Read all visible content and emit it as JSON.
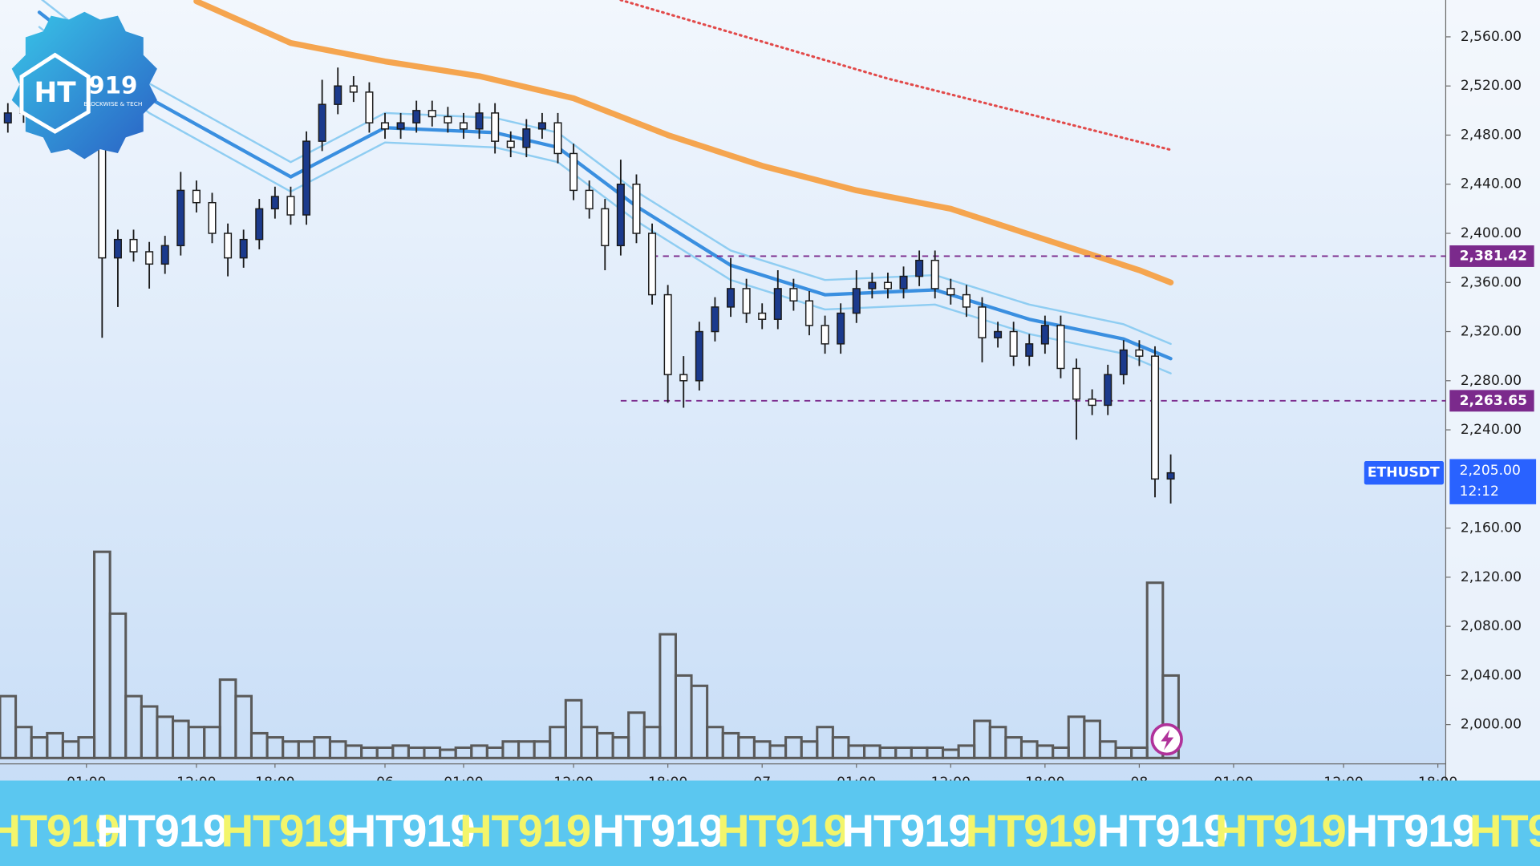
{
  "chart_data": {
    "type": "candlestick",
    "symbol": "ETHUSDT",
    "price": 2205,
    "price_label": "2,205.00",
    "countdown": "12:12",
    "up_color": "#1b3a8c",
    "down_color": "#ffffff",
    "xlim": [
      -0.5,
      91.5
    ],
    "ylim": [
      1968,
      2590
    ],
    "yticks": [
      {
        "value": 2000,
        "label": "2,000.00"
      },
      {
        "value": 2040,
        "label": "2,040.00"
      },
      {
        "value": 2080,
        "label": "2,080.00"
      },
      {
        "value": 2120,
        "label": "2,120.00"
      },
      {
        "value": 2160,
        "label": "2,160.00"
      },
      {
        "value": 2240,
        "label": "2,240.00"
      },
      {
        "value": 2280,
        "label": "2,280.00"
      },
      {
        "value": 2320,
        "label": "2,320.00"
      },
      {
        "value": 2360,
        "label": "2,360.00"
      },
      {
        "value": 2400,
        "label": "2,400.00"
      },
      {
        "value": 2440,
        "label": "2,440.00"
      },
      {
        "value": 2480,
        "label": "2,480.00"
      },
      {
        "value": 2520,
        "label": "2,520.00"
      },
      {
        "value": 2560,
        "label": "2,560.00"
      }
    ],
    "xticks": [
      {
        "value": 5,
        "label": "01:00"
      },
      {
        "value": 12,
        "label": "12:00"
      },
      {
        "value": 17,
        "label": "18:00"
      },
      {
        "value": 24,
        "label": "06"
      },
      {
        "value": 29,
        "label": "01:00"
      },
      {
        "value": 36,
        "label": "12:00"
      },
      {
        "value": 42,
        "label": "18:00"
      },
      {
        "value": 48,
        "label": "07"
      },
      {
        "value": 54,
        "label": "01:00"
      },
      {
        "value": 60,
        "label": "12:00"
      },
      {
        "value": 66,
        "label": "18:00"
      },
      {
        "value": 72,
        "label": "08"
      },
      {
        "value": 78,
        "label": "01:00"
      },
      {
        "value": 85,
        "label": "12:00"
      },
      {
        "value": 91,
        "label": "18:00"
      }
    ],
    "open": [
      2490,
      2498,
      2505,
      2490,
      2500,
      2495,
      2505,
      2380,
      2395,
      2385,
      2375,
      2390,
      2435,
      2425,
      2400,
      2380,
      2395,
      2420,
      2430,
      2415,
      2475,
      2505,
      2520,
      2515,
      2490,
      2485,
      2490,
      2500,
      2495,
      2490,
      2485,
      2498,
      2475,
      2470,
      2485,
      2490,
      2465,
      2435,
      2420,
      2390,
      2440,
      2400,
      2350,
      2285,
      2280,
      2320,
      2340,
      2355,
      2335,
      2330,
      2355,
      2345,
      2325,
      2310,
      2335,
      2355,
      2360,
      2355,
      2365,
      2378,
      2355,
      2350,
      2340,
      2315,
      2320,
      2300,
      2310,
      2325,
      2290,
      2265,
      2260,
      2285,
      2305,
      2300,
      2200
    ],
    "high": [
      2506,
      2513,
      2513,
      2508,
      2508,
      2513,
      2513,
      2403,
      2403,
      2393,
      2398,
      2450,
      2443,
      2433,
      2408,
      2403,
      2428,
      2438,
      2438,
      2483,
      2525,
      2535,
      2528,
      2523,
      2498,
      2498,
      2508,
      2508,
      2503,
      2498,
      2506,
      2506,
      2483,
      2493,
      2498,
      2498,
      2473,
      2443,
      2428,
      2460,
      2448,
      2408,
      2358,
      2300,
      2328,
      2348,
      2380,
      2363,
      2343,
      2370,
      2363,
      2353,
      2333,
      2343,
      2370,
      2368,
      2368,
      2373,
      2386,
      2386,
      2363,
      2358,
      2348,
      2328,
      2328,
      2318,
      2333,
      2333,
      2298,
      2273,
      2293,
      2313,
      2313,
      2308,
      2220
    ],
    "low": [
      2482,
      2490,
      2482,
      2482,
      2487,
      2487,
      2315,
      2340,
      2377,
      2355,
      2367,
      2382,
      2417,
      2392,
      2365,
      2372,
      2387,
      2412,
      2407,
      2407,
      2467,
      2497,
      2507,
      2482,
      2477,
      2477,
      2482,
      2487,
      2482,
      2477,
      2477,
      2465,
      2462,
      2462,
      2477,
      2457,
      2427,
      2412,
      2370,
      2382,
      2392,
      2342,
      2262,
      2258,
      2272,
      2312,
      2332,
      2327,
      2322,
      2322,
      2337,
      2317,
      2302,
      2302,
      2327,
      2347,
      2347,
      2347,
      2357,
      2347,
      2342,
      2332,
      2295,
      2307,
      2292,
      2292,
      2302,
      2282,
      2232,
      2252,
      2252,
      2277,
      2292,
      2185,
      2180
    ],
    "close": [
      2498,
      2505,
      2490,
      2500,
      2495,
      2505,
      2380,
      2395,
      2385,
      2375,
      2390,
      2435,
      2425,
      2400,
      2380,
      2395,
      2420,
      2430,
      2415,
      2475,
      2505,
      2520,
      2515,
      2490,
      2485,
      2490,
      2500,
      2495,
      2490,
      2485,
      2498,
      2475,
      2470,
      2485,
      2490,
      2465,
      2435,
      2420,
      2390,
      2440,
      2400,
      2350,
      2285,
      2280,
      2320,
      2340,
      2355,
      2335,
      2330,
      2355,
      2345,
      2325,
      2310,
      2335,
      2355,
      2360,
      2355,
      2365,
      2378,
      2355,
      2350,
      2340,
      2315,
      2320,
      2300,
      2310,
      2325,
      2290,
      2265,
      2260,
      2285,
      2305,
      2300,
      2200,
      2205
    ],
    "volume": [
      30,
      15,
      10,
      12,
      8,
      10,
      100,
      70,
      30,
      25,
      20,
      18,
      15,
      15,
      38,
      30,
      12,
      10,
      8,
      8,
      10,
      8,
      6,
      5,
      5,
      6,
      5,
      5,
      4,
      5,
      6,
      5,
      8,
      8,
      8,
      15,
      28,
      15,
      12,
      10,
      22,
      15,
      60,
      40,
      35,
      15,
      12,
      10,
      8,
      6,
      10,
      8,
      15,
      10,
      6,
      6,
      5,
      5,
      5,
      5,
      4,
      6,
      18,
      15,
      10,
      8,
      6,
      5,
      20,
      18,
      8,
      5,
      5,
      85,
      40
    ],
    "volume_color": "#5a5a5a",
    "lines": [
      {
        "color": "#f5a54f",
        "width": 6,
        "dotted": false,
        "x": [
          12,
          18,
          24,
          30,
          36,
          42,
          48,
          54,
          60,
          66,
          72,
          74
        ],
        "values": [
          2589,
          2555,
          2540,
          2528,
          2510,
          2480,
          2455,
          2435,
          2420,
          2395,
          2370,
          2360
        ]
      },
      {
        "color": "#8fcdf2",
        "width": 2,
        "dotted": false,
        "x": [
          2,
          9,
          18,
          24,
          31,
          35,
          40,
          46,
          52,
          59,
          65,
          71,
          74
        ],
        "values": [
          2592,
          2522,
          2458,
          2498,
          2494,
          2482,
          2434,
          2386,
          2362,
          2366,
          2342,
          2326,
          2310
        ]
      },
      {
        "color": "#8fcdf2",
        "width": 2,
        "dotted": false,
        "x": [
          2,
          9,
          18,
          24,
          31,
          35,
          40,
          46,
          52,
          59,
          65,
          71,
          74
        ],
        "values": [
          2568,
          2498,
          2434,
          2474,
          2470,
          2458,
          2410,
          2362,
          2338,
          2342,
          2318,
          2302,
          2286
        ]
      },
      {
        "color": "#3a8fe0",
        "width": 3.5,
        "dotted": false,
        "x": [
          2,
          9,
          18,
          24,
          31,
          35,
          40,
          46,
          52,
          59,
          65,
          71,
          74
        ],
        "values": [
          2580,
          2510,
          2446,
          2486,
          2482,
          2470,
          2422,
          2374,
          2350,
          2354,
          2330,
          2314,
          2298
        ]
      },
      {
        "color": "#e24a4a",
        "width": 2.5,
        "dotted": true,
        "x": [
          39,
          56,
          74
        ],
        "values": [
          2590,
          2526,
          2468
        ]
      }
    ],
    "levels": {
      "values": [
        2381.42,
        2263.65
      ],
      "value_labels": [
        "2,381.42",
        "2,263.65"
      ],
      "starts": [
        41,
        39
      ],
      "color": "#7b2a8c"
    }
  },
  "logo": {
    "name": "919",
    "tagline": "BLOCKWISE & TECH",
    "mark": "HT"
  },
  "banner": {
    "text": "HT919",
    "colors": [
      "#f3f56b",
      "#ffffff"
    ]
  }
}
